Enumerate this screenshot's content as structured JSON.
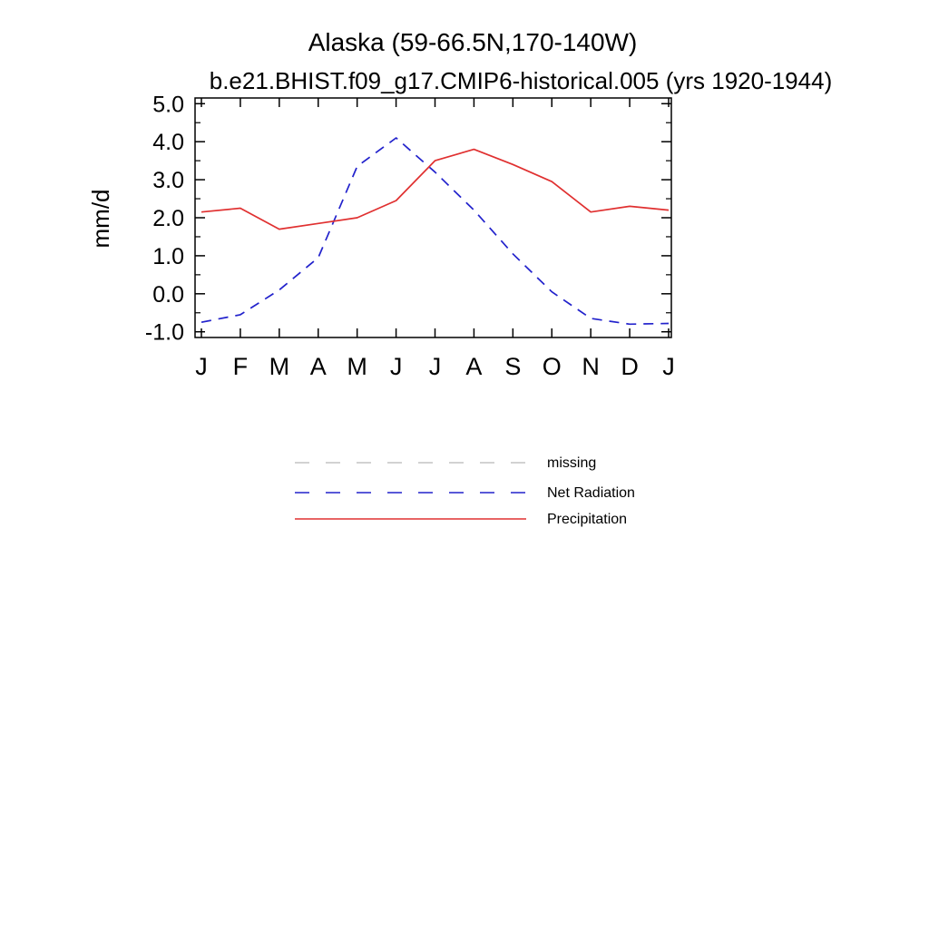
{
  "page": {
    "background": "#ffffff",
    "axis_color": "#000000"
  },
  "chart_data": {
    "type": "line",
    "title": "Alaska (59-66.5N,170-140W)",
    "subtitle": "b.e21.BHIST.f09_g17.CMIP6-historical.005 (yrs 1920-1944)",
    "ylabel": "mm/d",
    "xlabel": "",
    "x_categories": [
      "J",
      "F",
      "M",
      "A",
      "M",
      "J",
      "J",
      "A",
      "S",
      "O",
      "N",
      "D",
      "J"
    ],
    "ylim": [
      -1.0,
      5.0
    ],
    "ytick_labels": [
      "5.0",
      "4.0",
      "3.0",
      "2.0",
      "1.0",
      "0.0",
      "-1.0"
    ],
    "ytick_values": [
      5,
      4,
      3,
      2,
      1,
      0,
      -1
    ],
    "yminor_values": [
      4.5,
      3.5,
      2.5,
      1.5,
      0.5,
      -0.5
    ],
    "grid": false,
    "legend_position": "below-plot",
    "series": [
      {
        "name": "Net Radiation",
        "color": "#2222cc",
        "line_style": "dashed",
        "values": [
          -0.75,
          -0.55,
          0.1,
          0.95,
          3.35,
          4.1,
          3.2,
          2.2,
          1.05,
          0.05,
          -0.65,
          -0.8,
          -0.78
        ]
      },
      {
        "name": "Precipitation",
        "color": "#e03030",
        "line_style": "solid",
        "values": [
          2.15,
          2.25,
          1.7,
          1.85,
          2.0,
          2.45,
          3.5,
          3.8,
          3.4,
          2.95,
          2.15,
          2.3,
          2.2
        ]
      }
    ],
    "legend": [
      {
        "label": "missing",
        "color": "#c4c4c4",
        "line_style": "dashed"
      },
      {
        "label": "Net Radiation",
        "color": "#2222cc",
        "line_style": "dashed"
      },
      {
        "label": "Precipitation",
        "color": "#e03030",
        "line_style": "solid"
      }
    ]
  }
}
